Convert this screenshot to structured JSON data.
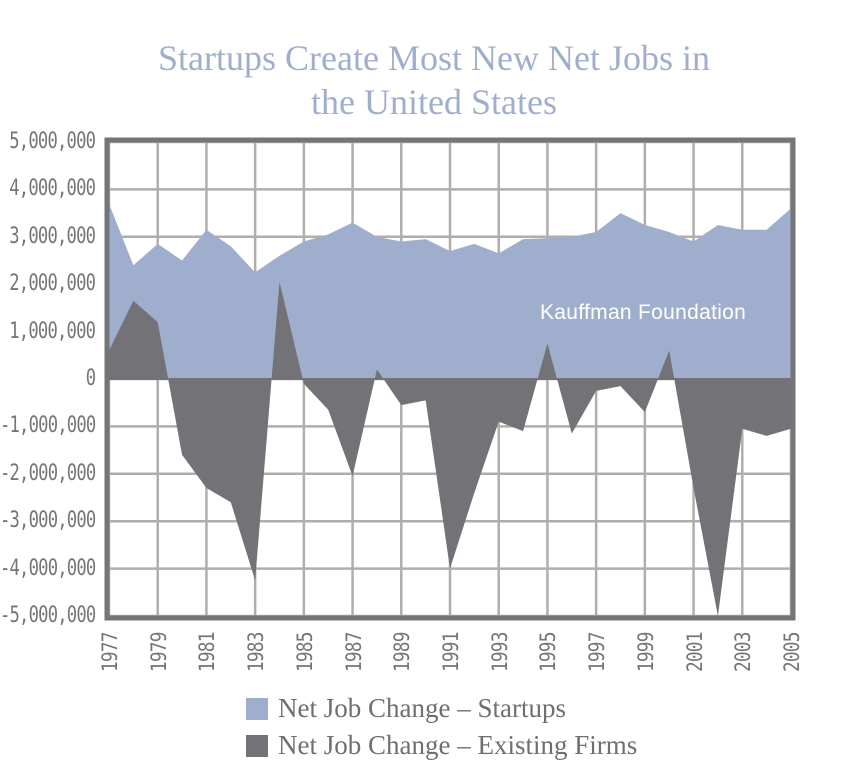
{
  "title_lines": [
    "Startups Create Most New Net Jobs in",
    "the United States"
  ],
  "watermark": "Kauffman Foundation",
  "y_tick_labels": [
    "5,000,000",
    "4,000,000",
    "3,000,000",
    "2,000,000",
    "1,000,000",
    "0",
    "-1,000,000",
    "-2,000,000",
    "-3,000,000",
    "-4,000,000",
    "-5,000,000"
  ],
  "x_tick_labels": [
    "1977",
    "1979",
    "1981",
    "1983",
    "1985",
    "1987",
    "1989",
    "1991",
    "1993",
    "1995",
    "1997",
    "1999",
    "2001",
    "2003",
    "2005"
  ],
  "legend": [
    {
      "label": "Net Job Change – Startups",
      "color": "#a0aecd"
    },
    {
      "label": "Net Job Change – Existing Firms",
      "color": "#737277"
    }
  ],
  "colors": {
    "startups": "#a0aecd",
    "existing": "#737277",
    "grid": "#b1aeaa",
    "frame": "#757479",
    "title": "#a0aecd"
  },
  "chart_data": {
    "type": "area",
    "title": "Startups Create Most New Net Jobs in the United States",
    "xlabel": "",
    "ylabel": "",
    "ylim": [
      -5000000,
      5000000
    ],
    "xlim": [
      1977,
      2005
    ],
    "grid": true,
    "legend_position": "bottom",
    "annotations": [
      "Kauffman Foundation"
    ],
    "x": [
      1977,
      1978,
      1979,
      1980,
      1981,
      1982,
      1983,
      1984,
      1985,
      1986,
      1987,
      1988,
      1989,
      1990,
      1991,
      1992,
      1993,
      1994,
      1995,
      1996,
      1997,
      1998,
      1999,
      2000,
      2001,
      2002,
      2003,
      2004,
      2005
    ],
    "series": [
      {
        "name": "Net Job Change – Startups",
        "values": [
          3700000,
          2400000,
          2850000,
          2500000,
          3150000,
          2800000,
          2250000,
          2600000,
          2900000,
          3050000,
          3300000,
          3000000,
          2900000,
          2950000,
          2700000,
          2850000,
          2650000,
          2950000,
          2970000,
          3000000,
          3100000,
          3500000,
          3250000,
          3100000,
          2900000,
          3250000,
          3150000,
          3150000,
          3600000
        ]
      },
      {
        "name": "Net Job Change – Existing Firms",
        "values": [
          600000,
          1650000,
          1200000,
          -1600000,
          -2300000,
          -2600000,
          -4250000,
          2050000,
          -100000,
          -650000,
          -2050000,
          200000,
          -550000,
          -450000,
          -4000000,
          -2400000,
          -900000,
          -1100000,
          750000,
          -1150000,
          -250000,
          -150000,
          -700000,
          600000,
          -2300000,
          -5000000,
          -1050000,
          -1200000,
          -1050000
        ]
      }
    ]
  }
}
